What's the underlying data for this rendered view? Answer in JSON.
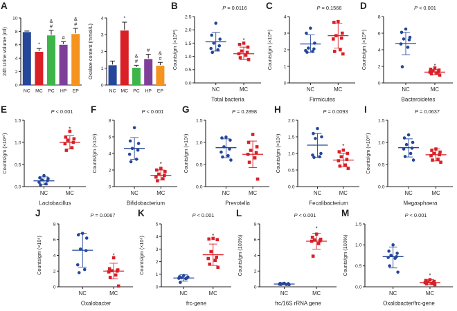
{
  "palette": {
    "nc": "#25479A",
    "mc": "#D92027",
    "pc": "#3DB549",
    "hp": "#7E3F99",
    "ep": "#F6921E",
    "axis": "#231F20",
    "star": "#3A3A3A",
    "background": "#FFFFFF"
  },
  "group_labels": [
    "NC",
    "MC",
    "PC",
    "HP",
    "EP"
  ],
  "chart_data": [
    {
      "id": "A1",
      "panel_label": "A",
      "type": "bar",
      "ylabel": "24h Urine volume (ml)",
      "ylim": [
        0,
        10
      ],
      "yticks": [
        0,
        2,
        4,
        6,
        8,
        10
      ],
      "ydecimals": 0,
      "categories": [
        "NC",
        "MC",
        "PC",
        "HP",
        "EP"
      ],
      "values": [
        7.9,
        4.95,
        7.4,
        6.0,
        7.6
      ],
      "errors": [
        0.15,
        0.5,
        0.75,
        0.45,
        0.85
      ],
      "bar_colors": [
        "nc",
        "mc",
        "pc",
        "hp",
        "ep"
      ],
      "annotations": [
        "",
        "*",
        "&|#",
        "#",
        "&|#"
      ]
    },
    {
      "id": "A2",
      "panel_label": "",
      "type": "bar",
      "ylabel": "Oxalate content (mmol/L)",
      "ylim": [
        0,
        4
      ],
      "yticks": [
        0,
        1,
        2,
        3,
        4
      ],
      "ydecimals": 0,
      "categories": [
        "NC",
        "MC",
        "PC",
        "HP",
        "EP"
      ],
      "values": [
        1.18,
        3.25,
        1.03,
        1.55,
        1.15
      ],
      "errors": [
        0.25,
        0.5,
        0.15,
        0.28,
        0.2
      ],
      "bar_colors": [
        "nc",
        "mc",
        "pc",
        "hp",
        "ep"
      ],
      "annotations": [
        "",
        "*",
        "&|#",
        "#",
        "&|#"
      ]
    },
    {
      "id": "B",
      "panel_label": "B",
      "type": "scatter",
      "pvalue": "P = 0.0116",
      "ylabel": "Counts/gm (×10¹²)",
      "xlabel": "Total bacteria",
      "ylim": [
        0,
        2.5
      ],
      "yticks": [
        0,
        0.5,
        1,
        1.5,
        2,
        2.5
      ],
      "ydecimals": 1,
      "groups": [
        {
          "name": "NC",
          "marker": "circle",
          "color": "nc",
          "points": [
            2.25,
            1.8,
            1.65,
            1.5,
            1.4,
            1.3,
            1.25,
            1.15
          ],
          "mean": 1.55,
          "lo": 1.2,
          "hi": 1.9
        },
        {
          "name": "MC",
          "marker": "square",
          "color": "mc",
          "points": [
            1.5,
            1.45,
            1.35,
            1.2,
            1.15,
            1.1,
            1.05,
            0.95,
            0.88
          ],
          "mean": 1.1,
          "lo": 0.88,
          "hi": 1.35,
          "star": 1.6
        }
      ]
    },
    {
      "id": "C",
      "panel_label": "C",
      "type": "scatter",
      "pvalue": "P = 0.1566",
      "ylabel": "Counts/gm (×10¹¹)",
      "xlabel": "Firmicutes",
      "ylim": [
        0,
        4
      ],
      "yticks": [
        0,
        1,
        2,
        3,
        4
      ],
      "ydecimals": 0,
      "groups": [
        {
          "name": "NC",
          "marker": "circle",
          "color": "nc",
          "points": [
            3.3,
            3.0,
            2.4,
            2.1,
            2.05,
            1.95,
            1.9,
            1.85
          ],
          "mean": 2.35,
          "lo": 1.85,
          "hi": 2.9
        },
        {
          "name": "MC",
          "marker": "square",
          "color": "mc",
          "points": [
            3.7,
            3.65,
            3.0,
            2.85,
            2.7,
            2.65,
            2.0,
            1.9,
            1.75
          ],
          "mean": 2.85,
          "lo": 2.1,
          "hi": 3.6
        }
      ]
    },
    {
      "id": "D",
      "panel_label": "D",
      "type": "scatter",
      "pvalue": "P < 0.001",
      "ylabel": "Counts/gm (×10¹¹)",
      "xlabel": "Bacteroidetes",
      "ylim": [
        0,
        8
      ],
      "yticks": [
        0,
        2,
        4,
        6,
        8
      ],
      "ydecimals": 0,
      "groups": [
        {
          "name": "NC",
          "marker": "circle",
          "color": "nc",
          "points": [
            6.5,
            6.1,
            5.5,
            5.3,
            5.2,
            4.7,
            4.3,
            1.95
          ],
          "mean": 4.75,
          "lo": 3.4,
          "hi": 6.1
        },
        {
          "name": "MC",
          "marker": "square",
          "color": "mc",
          "points": [
            1.8,
            1.65,
            1.55,
            1.45,
            1.35,
            1.3,
            1.2,
            1.1,
            0.95
          ],
          "mean": 1.3,
          "lo": 1.0,
          "hi": 1.6,
          "star": 2.05
        }
      ]
    },
    {
      "id": "E",
      "panel_label": "E",
      "type": "scatter",
      "pvalue": "P < 0.001",
      "ylabel": "Counts/gm (×10¹⁰)",
      "xlabel": "Lactobacillus",
      "ylim": [
        0,
        1.5
      ],
      "yticks": [
        0,
        0.5,
        1,
        1.5
      ],
      "ydecimals": 1,
      "groups": [
        {
          "name": "NC",
          "marker": "circle",
          "color": "nc",
          "points": [
            0.25,
            0.2,
            0.18,
            0.15,
            0.13,
            0.1,
            0.06,
            0.04
          ],
          "mean": 0.13,
          "lo": 0.04,
          "hi": 0.22
        },
        {
          "name": "MC",
          "marker": "square",
          "color": "mc",
          "points": [
            1.25,
            1.12,
            1.08,
            1.05,
            1.0,
            0.97,
            0.88,
            0.82
          ],
          "mean": 1.0,
          "lo": 0.85,
          "hi": 1.15,
          "star": 1.3
        }
      ]
    },
    {
      "id": "F",
      "panel_label": "F",
      "type": "scatter",
      "pvalue": "P < 0.001",
      "ylabel": "Counts/gm (×10⁹)",
      "xlabel": "Bifidobacterium",
      "ylim": [
        0,
        8
      ],
      "yticks": [
        0,
        2,
        4,
        6,
        8
      ],
      "ydecimals": 0,
      "groups": [
        {
          "name": "NC",
          "marker": "circle",
          "color": "nc",
          "points": [
            7.1,
            5.5,
            5.2,
            4.6,
            4.4,
            3.9,
            3.3,
            3.0
          ],
          "mean": 4.6,
          "lo": 3.3,
          "hi": 5.9
        },
        {
          "name": "MC",
          "marker": "square",
          "color": "mc",
          "points": [
            2.2,
            2.0,
            1.8,
            1.5,
            1.35,
            1.15,
            0.95,
            0.7
          ],
          "mean": 1.35,
          "lo": 0.8,
          "hi": 2.0,
          "star": 2.7
        }
      ]
    },
    {
      "id": "G",
      "panel_label": "G",
      "type": "scatter",
      "pvalue": "P = 0.2898",
      "ylabel": "Counts/gm (×10⁸)",
      "xlabel": "Prevotella",
      "ylim": [
        0,
        1.5
      ],
      "yticks": [
        0,
        0.5,
        1,
        1.5
      ],
      "ydecimals": 1,
      "groups": [
        {
          "name": "NC",
          "marker": "circle",
          "color": "nc",
          "points": [
            1.12,
            1.1,
            1.05,
            0.9,
            0.85,
            0.78,
            0.7,
            0.67,
            0.6
          ],
          "mean": 0.88,
          "lo": 0.65,
          "hi": 1.08
        },
        {
          "name": "MC",
          "marker": "square",
          "color": "mc",
          "points": [
            1.18,
            1.0,
            0.9,
            0.82,
            0.77,
            0.73,
            0.65,
            0.55,
            0.17
          ],
          "mean": 0.73,
          "lo": 0.43,
          "hi": 1.03
        }
      ]
    },
    {
      "id": "H",
      "panel_label": "H",
      "type": "scatter",
      "pvalue": "P = 0.0093",
      "ylabel": "Counts/gm (×10⁹)",
      "xlabel": "Fecalibacterium",
      "ylim": [
        0,
        2
      ],
      "yticks": [
        0,
        0.5,
        1,
        1.5,
        2
      ],
      "ydecimals": 1,
      "groups": [
        {
          "name": "NC",
          "marker": "circle",
          "color": "nc",
          "points": [
            1.75,
            1.6,
            1.5,
            1.45,
            1.0,
            0.95,
            0.9,
            0.88
          ],
          "mean": 1.25,
          "lo": 0.88,
          "hi": 1.6
        },
        {
          "name": "MC",
          "marker": "square",
          "color": "mc",
          "points": [
            1.1,
            1.05,
            1.0,
            0.9,
            0.82,
            0.78,
            0.65,
            0.62,
            0.55
          ],
          "mean": 0.8,
          "lo": 0.6,
          "hi": 1.0,
          "star": 1.22
        }
      ]
    },
    {
      "id": "I",
      "panel_label": "I",
      "type": "scatter",
      "pvalue": "P = 0.0637",
      "ylabel": "Counts/gm (×10¹⁰)",
      "xlabel": "Megasphaera",
      "ylim": [
        0,
        1.5
      ],
      "yticks": [
        0,
        0.5,
        1,
        1.5
      ],
      "ydecimals": 1,
      "groups": [
        {
          "name": "NC",
          "marker": "circle",
          "color": "nc",
          "points": [
            1.17,
            1.1,
            1.0,
            0.95,
            0.87,
            0.85,
            0.75,
            0.68,
            0.6
          ],
          "mean": 0.88,
          "lo": 0.67,
          "hi": 1.08
        },
        {
          "name": "MC",
          "marker": "square",
          "color": "mc",
          "points": [
            0.85,
            0.82,
            0.78,
            0.75,
            0.72,
            0.7,
            0.62,
            0.6,
            0.55
          ],
          "mean": 0.72,
          "lo": 0.58,
          "hi": 0.85
        }
      ]
    },
    {
      "id": "J",
      "panel_label": "J",
      "type": "scatter",
      "pvalue": "P = 0.0067",
      "ylabel": "Counts/gm (×10⁶)",
      "xlabel": "Oxalobacter",
      "ylim": [
        0,
        8
      ],
      "yticks": [
        0,
        2,
        4,
        6,
        8
      ],
      "ydecimals": 0,
      "groups": [
        {
          "name": "NC",
          "marker": "circle",
          "color": "nc",
          "points": [
            6.8,
            6.6,
            6.2,
            4.8,
            4.6,
            2.8,
            2.2,
            1.8
          ],
          "mean": 4.65,
          "lo": 2.5,
          "hi": 6.8
        },
        {
          "name": "MC",
          "marker": "square",
          "color": "mc",
          "points": [
            3.7,
            2.3,
            2.15,
            2.05,
            2.0,
            1.9,
            1.5,
            1.2,
            0.1
          ],
          "mean": 2.0,
          "lo": 1.0,
          "hi": 3.0,
          "star": 3.95
        }
      ]
    },
    {
      "id": "K",
      "panel_label": "K",
      "type": "scatter",
      "pvalue": "P < 0.001",
      "ylabel": "Counts/gm (×10⁶)",
      "xlabel": "frc-gene",
      "ylim": [
        0,
        5
      ],
      "yticks": [
        0,
        1,
        2,
        3,
        4,
        5
      ],
      "ydecimals": 0,
      "groups": [
        {
          "name": "NC",
          "marker": "circle",
          "color": "nc",
          "points": [
            0.9,
            0.8,
            0.78,
            0.72,
            0.7,
            0.68,
            0.65,
            0.35
          ],
          "mean": 0.7,
          "lo": 0.45,
          "hi": 0.95
        },
        {
          "name": "MC",
          "marker": "square",
          "color": "mc",
          "points": [
            3.85,
            3.8,
            3.75,
            2.8,
            2.35,
            2.25,
            2.1,
            1.8,
            1.55
          ],
          "mean": 2.55,
          "lo": 1.7,
          "hi": 3.4,
          "star": 4.05
        }
      ]
    },
    {
      "id": "L",
      "panel_label": "L",
      "type": "scatter",
      "pvalue": "P < 0.001",
      "ylabel": "Counts/gm (100%)",
      "xlabel": "frc/16S rRNA gene",
      "ylim": [
        0,
        8
      ],
      "yticks": [
        0,
        2,
        4,
        6,
        8
      ],
      "ydecimals": 0,
      "groups": [
        {
          "name": "NC",
          "marker": "circle",
          "color": "nc",
          "points": [
            0.45,
            0.42,
            0.4,
            0.38,
            0.35,
            0.33,
            0.3,
            0.3,
            0.28
          ],
          "mean": 0.35,
          "lo": 0.25,
          "hi": 0.45
        },
        {
          "name": "MC",
          "marker": "square",
          "color": "mc",
          "points": [
            6.7,
            6.3,
            6.05,
            5.95,
            5.85,
            5.8,
            5.5,
            3.9
          ],
          "mean": 5.8,
          "lo": 4.8,
          "hi": 6.8,
          "star": 7.4
        }
      ]
    },
    {
      "id": "M",
      "panel_label": "M",
      "type": "scatter",
      "pvalue": "P < 0.001",
      "ylabel": "Counts/gm (100%)",
      "xlabel": "Oxalobacter/frc-gene",
      "ylim": [
        0,
        1.5
      ],
      "yticks": [
        0,
        0.5,
        1,
        1.5
      ],
      "ydecimals": 1,
      "groups": [
        {
          "name": "NC",
          "marker": "circle",
          "color": "nc",
          "points": [
            1.0,
            0.85,
            0.8,
            0.75,
            0.72,
            0.7,
            0.68,
            0.5,
            0.35
          ],
          "mean": 0.72,
          "lo": 0.45,
          "hi": 0.95
        },
        {
          "name": "MC",
          "marker": "square",
          "color": "mc",
          "points": [
            0.17,
            0.15,
            0.13,
            0.12,
            0.1,
            0.1,
            0.08,
            0.07,
            0.05
          ],
          "mean": 0.1,
          "lo": 0.05,
          "hi": 0.17,
          "star": 0.26
        }
      ]
    }
  ]
}
